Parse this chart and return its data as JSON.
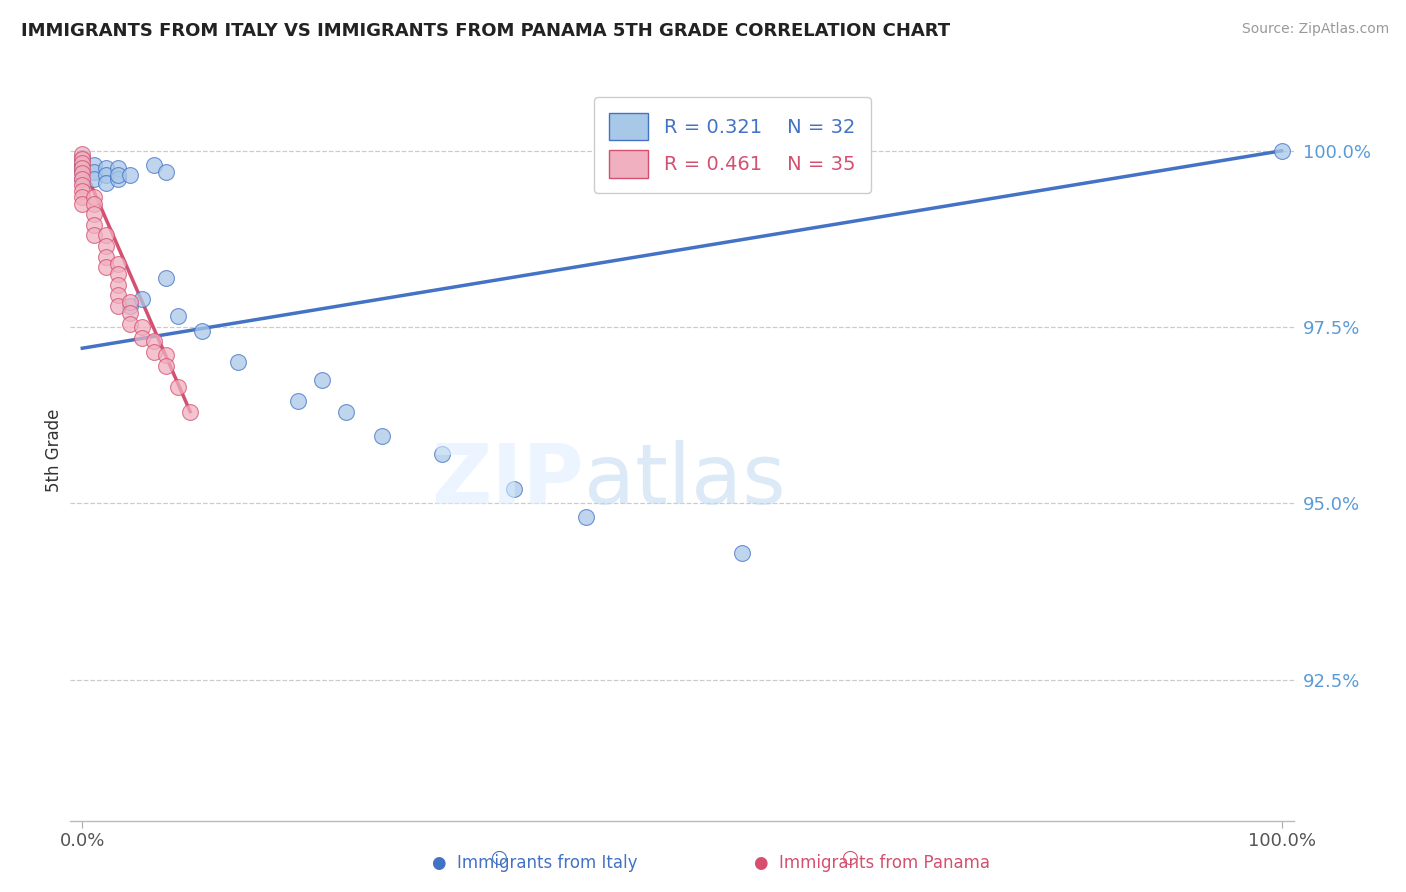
{
  "title": "IMMIGRANTS FROM ITALY VS IMMIGRANTS FROM PANAMA 5TH GRADE CORRELATION CHART",
  "source": "Source: ZipAtlas.com",
  "ylabel": "5th Grade",
  "blue_color": "#a8c8e8",
  "pink_color": "#f0b0c0",
  "blue_line_color": "#4472c4",
  "pink_line_color": "#d45070",
  "legend_blue_R": "R = 0.321",
  "legend_blue_N": "N = 32",
  "legend_pink_R": "R = 0.461",
  "legend_pink_N": "N = 35",
  "blue_scatter_x": [
    0.0,
    0.0,
    0.0,
    0.0,
    0.0,
    0.01,
    0.01,
    0.01,
    0.02,
    0.02,
    0.02,
    0.03,
    0.03,
    0.04,
    0.05,
    0.06,
    0.07,
    0.07,
    0.08,
    0.1,
    0.13,
    0.18,
    0.2,
    0.22,
    0.25,
    0.3,
    0.36,
    0.42,
    0.55,
    0.03,
    0.04,
    1.0
  ],
  "blue_scatter_y": [
    0.999,
    0.998,
    0.997,
    0.9975,
    0.996,
    0.998,
    0.997,
    0.996,
    0.9975,
    0.9965,
    0.9955,
    0.9975,
    0.996,
    0.978,
    0.979,
    0.998,
    0.997,
    0.982,
    0.9765,
    0.9745,
    0.97,
    0.9645,
    0.9675,
    0.963,
    0.9595,
    0.957,
    0.952,
    0.948,
    0.943,
    0.9965,
    0.9965,
    1.0
  ],
  "pink_scatter_x": [
    0.0,
    0.0,
    0.0,
    0.0,
    0.0,
    0.0,
    0.0,
    0.0,
    0.0,
    0.0,
    0.01,
    0.01,
    0.01,
    0.01,
    0.01,
    0.02,
    0.02,
    0.02,
    0.02,
    0.03,
    0.03,
    0.03,
    0.03,
    0.03,
    0.04,
    0.04,
    0.04,
    0.05,
    0.05,
    0.06,
    0.06,
    0.07,
    0.07,
    0.08,
    0.09
  ],
  "pink_scatter_y": [
    0.9995,
    0.9988,
    0.9982,
    0.9975,
    0.9968,
    0.996,
    0.9952,
    0.9943,
    0.9935,
    0.9925,
    0.9935,
    0.9925,
    0.991,
    0.9895,
    0.988,
    0.988,
    0.9865,
    0.985,
    0.9835,
    0.984,
    0.9825,
    0.981,
    0.9795,
    0.978,
    0.9785,
    0.977,
    0.9755,
    0.975,
    0.9735,
    0.973,
    0.9715,
    0.971,
    0.9695,
    0.9665,
    0.963
  ],
  "yticks": [
    0.925,
    0.95,
    0.975,
    1.0
  ],
  "ytick_labels": [
    "92.5%",
    "95.0%",
    "97.5%",
    "100.0%"
  ],
  "ylim": [
    0.905,
    1.01
  ],
  "xlim": [
    -0.01,
    1.01
  ],
  "blue_trend_x": [
    0.0,
    1.0
  ],
  "blue_trend_y_start": 0.972,
  "blue_trend_y_end": 1.0,
  "pink_trend_x": [
    0.0,
    0.09
  ],
  "pink_trend_y_start": 0.998,
  "pink_trend_y_end": 0.963
}
